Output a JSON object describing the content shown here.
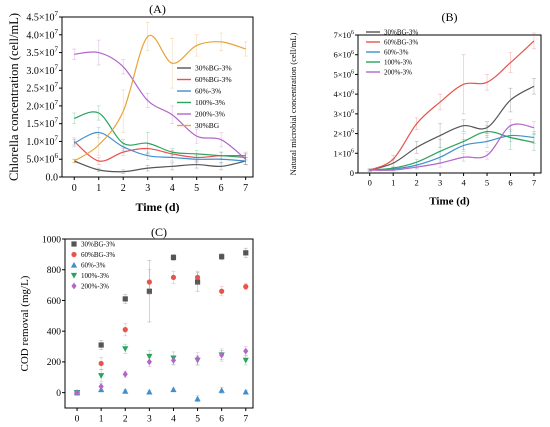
{
  "chart_data": [
    {
      "panel_label": "(A)",
      "type": "line",
      "x": [
        0,
        1,
        2,
        3,
        4,
        5,
        6,
        7
      ],
      "xlabel": "Time (d)",
      "ylabel": "Chlorella concentration (cell/mL)",
      "xlim": [
        -0.5,
        7.3
      ],
      "ylim": [
        0,
        4.5
      ],
      "y_multiplier_label": "×10^7",
      "xticks": [
        "0",
        "1",
        "2",
        "3",
        "4",
        "5",
        "6",
        "7"
      ],
      "yticks": [
        {
          "v": 0.0,
          "mant": "0.0",
          "exp": ""
        },
        {
          "v": 0.5,
          "mant": "5.0×10",
          "exp": "6"
        },
        {
          "v": 1.0,
          "mant": "1.0×10",
          "exp": "7"
        },
        {
          "v": 1.5,
          "mant": "1.5×10",
          "exp": "7"
        },
        {
          "v": 2.0,
          "mant": "2.0×10",
          "exp": "7"
        },
        {
          "v": 2.5,
          "mant": "2.5×10",
          "exp": "7"
        },
        {
          "v": 3.0,
          "mant": "3.0×10",
          "exp": "7"
        },
        {
          "v": 3.5,
          "mant": "3.5×10",
          "exp": "7"
        },
        {
          "v": 4.0,
          "mant": "4.0×10",
          "exp": "7"
        },
        {
          "v": 4.5,
          "mant": "4.5×10",
          "exp": "7"
        }
      ],
      "legend_position": "center-right",
      "series": [
        {
          "name": "30%BG-3%",
          "color": "#555555",
          "values": [
            0.45,
            0.2,
            0.15,
            0.25,
            0.3,
            0.35,
            0.3,
            0.45
          ],
          "errors": [
            0.05,
            0.05,
            0.05,
            0.08,
            0.1,
            0.1,
            0.1,
            0.1
          ]
        },
        {
          "name": "60%BG-3%",
          "color": "#e8534c",
          "values": [
            1.0,
            0.45,
            0.7,
            0.8,
            0.65,
            0.55,
            0.6,
            0.6
          ],
          "errors": [
            0.1,
            0.1,
            0.1,
            0.15,
            0.1,
            0.1,
            0.1,
            0.1
          ]
        },
        {
          "name": "60%-3%",
          "color": "#3f8fcf",
          "values": [
            0.95,
            1.25,
            0.85,
            0.6,
            0.55,
            0.5,
            0.5,
            0.45
          ],
          "errors": [
            0.1,
            0.15,
            0.1,
            0.1,
            0.1,
            0.1,
            0.1,
            0.1
          ]
        },
        {
          "name": "100%-3%",
          "color": "#2ca25f",
          "values": [
            1.65,
            1.8,
            0.95,
            0.95,
            0.7,
            0.65,
            0.6,
            0.55
          ],
          "errors": [
            0.15,
            0.2,
            0.1,
            0.3,
            0.1,
            0.1,
            0.1,
            0.1
          ]
        },
        {
          "name": "200%-3%",
          "color": "#b266c9",
          "values": [
            3.45,
            3.5,
            3.1,
            2.15,
            1.75,
            1.15,
            1.05,
            0.5
          ],
          "errors": [
            0.15,
            0.35,
            0.2,
            0.2,
            0.25,
            0.2,
            0.2,
            0.15
          ]
        },
        {
          "name": "30%BG",
          "color": "#e8a33a",
          "values": [
            0.45,
            0.9,
            1.85,
            3.95,
            3.2,
            3.7,
            3.8,
            3.6
          ],
          "errors": [
            0.05,
            0.3,
            0.6,
            0.4,
            0.7,
            0.3,
            0.25,
            0.2
          ]
        }
      ]
    },
    {
      "panel_label": "(B)",
      "type": "line",
      "x": [
        0,
        1,
        2,
        3,
        4,
        5,
        6,
        7
      ],
      "xlabel": "Time (d)",
      "ylabel": "Natural microbial concentration (cell/mL)",
      "xlim": [
        -0.5,
        7.3
      ],
      "ylim": [
        0,
        7
      ],
      "xticks": [
        "0",
        "1",
        "2",
        "3",
        "4",
        "5",
        "6",
        "7"
      ],
      "yticks": [
        {
          "v": 0,
          "mant": "0",
          "exp": ""
        },
        {
          "v": 1,
          "mant": "1×10",
          "exp": "6"
        },
        {
          "v": 2,
          "mant": "2×10",
          "exp": "6"
        },
        {
          "v": 3,
          "mant": "3×10",
          "exp": "6"
        },
        {
          "v": 4,
          "mant": "4×10",
          "exp": "6"
        },
        {
          "v": 5,
          "mant": "5×10",
          "exp": "6"
        },
        {
          "v": 6,
          "mant": "6×10",
          "exp": "6"
        },
        {
          "v": 7,
          "mant": "7×10",
          "exp": "6"
        }
      ],
      "legend_position": "top-left",
      "series": [
        {
          "name": "30%BG-3%",
          "color": "#555555",
          "values": [
            0.15,
            0.5,
            1.3,
            1.9,
            2.4,
            2.3,
            3.7,
            4.4
          ],
          "errors": [
            0.05,
            0.2,
            0.3,
            0.6,
            0.3,
            0.3,
            0.6,
            0.4
          ]
        },
        {
          "name": "60%BG-3%",
          "color": "#e8534c",
          "values": [
            0.15,
            0.7,
            2.5,
            3.6,
            4.5,
            4.6,
            5.6,
            6.7
          ],
          "errors": [
            0.05,
            0.2,
            0.3,
            0.4,
            1.5,
            0.4,
            0.5,
            0.4
          ]
        },
        {
          "name": "60%-3%",
          "color": "#3f8fcf",
          "values": [
            0.15,
            0.2,
            0.4,
            0.8,
            1.4,
            1.6,
            1.9,
            1.8
          ],
          "errors": [
            0.05,
            0.05,
            0.15,
            0.3,
            0.3,
            0.3,
            0.3,
            0.3
          ]
        },
        {
          "name": "100%-3%",
          "color": "#2ca25f",
          "values": [
            0.15,
            0.25,
            0.55,
            1.1,
            1.6,
            2.1,
            1.8,
            1.55
          ],
          "errors": [
            0.05,
            0.05,
            0.15,
            0.6,
            0.4,
            0.3,
            0.6,
            0.4
          ]
        },
        {
          "name": "200%-3%",
          "color": "#b266c9",
          "values": [
            0.15,
            0.15,
            0.3,
            0.5,
            0.8,
            0.9,
            2.4,
            2.3
          ],
          "errors": [
            0.05,
            0.05,
            0.1,
            0.2,
            0.2,
            0.2,
            0.3,
            0.3
          ]
        }
      ]
    },
    {
      "panel_label": "(C)",
      "type": "scatter",
      "x": [
        0,
        1,
        2,
        3,
        4,
        5,
        6,
        7
      ],
      "xlabel": "Time (d)",
      "ylabel": "COD removal (mg/L)",
      "xlim": [
        -0.5,
        7.3
      ],
      "ylim": [
        -100,
        1000
      ],
      "xticks": [
        "0",
        "1",
        "2",
        "3",
        "4",
        "5",
        "6",
        "7"
      ],
      "yticks": [
        {
          "v": 0,
          "mant": "0",
          "exp": ""
        },
        {
          "v": 200,
          "mant": "200",
          "exp": ""
        },
        {
          "v": 400,
          "mant": "400",
          "exp": ""
        },
        {
          "v": 600,
          "mant": "600",
          "exp": ""
        },
        {
          "v": 800,
          "mant": "800",
          "exp": ""
        },
        {
          "v": 1000,
          "mant": "1000",
          "exp": ""
        }
      ],
      "legend_position": "top-left",
      "series": [
        {
          "name": "30%BG-3%",
          "color": "#555555",
          "marker": "square",
          "values": [
            0,
            310,
            610,
            660,
            880,
            720,
            885,
            910
          ],
          "errors": [
            10,
            30,
            30,
            200,
            20,
            60,
            20,
            30
          ]
        },
        {
          "name": "60%BG-3%",
          "color": "#e8534c",
          "marker": "circle",
          "values": [
            0,
            190,
            410,
            720,
            750,
            750,
            660,
            690
          ],
          "errors": [
            10,
            40,
            40,
            80,
            40,
            40,
            30,
            20
          ]
        },
        {
          "name": "60%-3%",
          "color": "#3f8fcf",
          "marker": "triangle-up",
          "values": [
            0,
            20,
            10,
            5,
            20,
            -40,
            15,
            5
          ],
          "errors": [
            10,
            15,
            10,
            10,
            10,
            20,
            20,
            10
          ]
        },
        {
          "name": "100%-3%",
          "color": "#2ca25f",
          "marker": "triangle-down",
          "values": [
            0,
            110,
            285,
            235,
            225,
            210,
            245,
            210
          ],
          "errors": [
            10,
            40,
            30,
            40,
            40,
            30,
            30,
            30
          ]
        },
        {
          "name": "200%-3%",
          "color": "#b266c9",
          "marker": "diamond",
          "values": [
            0,
            40,
            120,
            200,
            210,
            220,
            245,
            270
          ],
          "errors": [
            10,
            20,
            20,
            30,
            30,
            40,
            40,
            30
          ]
        }
      ]
    }
  ]
}
